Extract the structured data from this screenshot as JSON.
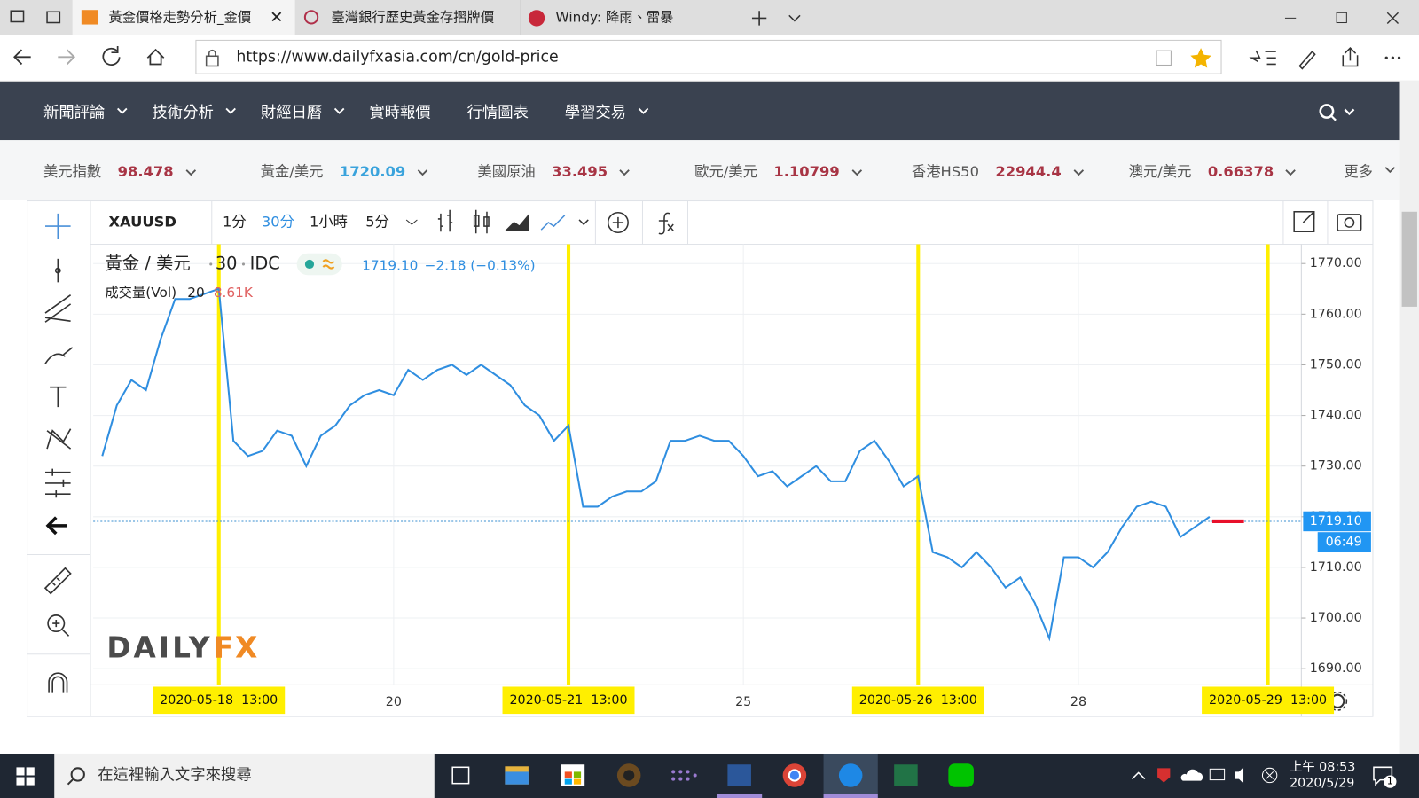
{
  "tabs": [
    "黃金價格走勢分析_金價",
    "臺灣銀行歷史黃金存摺牌價",
    "Windy: 降雨、雷暴"
  ],
  "url": "https://www.dailyfxasia.com/cn/gold-price",
  "nav": [
    "新聞評論",
    "技術分析",
    "財經日曆",
    "實時報價",
    "行情圖表",
    "學習交易"
  ],
  "nav_dropdown": [
    true,
    true,
    true,
    false,
    false,
    true
  ],
  "tickers": [
    {
      "name": "美元指數",
      "value": 98.478
    },
    {
      "name": "黃金/美元",
      "value": 1720.09
    },
    {
      "name": "美國原油",
      "value": 33.495
    },
    {
      "name": "歐元/美元",
      "value": 1.10799
    },
    {
      "name": "香港HS50",
      "value": 22944.4
    },
    {
      "name": "澳元/美元",
      "value": 0.66378
    }
  ],
  "tickers_more": "更多",
  "chart_toolbar": {
    "symbol": "XAUUSD",
    "intervals": [
      "1分",
      "30分",
      "1小時",
      "5分"
    ],
    "active_interval": 1
  },
  "legend": {
    "title": "黃金 / 美元",
    "interval": 30,
    "source": "IDC",
    "change": "−2.18 (−0.13%)",
    "volume_name": "成交量(Vol)",
    "volume_period": 20,
    "volume_value": "8.61K"
  },
  "watermark": [
    "DAILY",
    "FX"
  ],
  "countdown": "06:49",
  "chart_data": {
    "type": "line",
    "categories": [
      null,
      null,
      null,
      null,
      null,
      null,
      null,
      null,
      "2020-05-18  13:00",
      null,
      null,
      null,
      null,
      null,
      null,
      null,
      null,
      null,
      null,
      null,
      "20",
      null,
      null,
      null,
      null,
      null,
      null,
      null,
      null,
      null,
      null,
      null,
      "2020-05-21  13:00",
      null,
      null,
      null,
      null,
      null,
      null,
      null,
      null,
      null,
      null,
      null,
      "25",
      null,
      null,
      null,
      null,
      null,
      null,
      null,
      null,
      null,
      null,
      null,
      "2020-05-26  13:00",
      null,
      null,
      null,
      null,
      null,
      null,
      null,
      null,
      null,
      null,
      "28",
      null,
      null,
      null,
      null,
      null,
      null,
      null,
      null,
      null,
      null,
      null,
      null,
      "2020-05-29  13:00",
      null,
      null
    ],
    "series": [
      {
        "name": "黃金 / 美元",
        "color": "#2f8ee0",
        "values": [
          1732,
          1742,
          1747,
          1745,
          1755,
          1763,
          1763,
          1764,
          1765,
          1735,
          1732,
          1733,
          1737,
          1736,
          1730,
          1736,
          1738,
          1742,
          1744,
          1745,
          1744,
          1749,
          1747,
          1749,
          1750,
          1748,
          1750,
          1748,
          1746,
          1742,
          1740,
          1735,
          1738,
          1722,
          1722,
          1724,
          1725,
          1725,
          1727,
          1735,
          1735,
          1736,
          1735,
          1735,
          1732,
          1728,
          1729,
          1726,
          1728,
          1730,
          1727,
          1727,
          1733,
          1735,
          1731,
          1726,
          1728,
          1713,
          1712,
          1710,
          1713,
          1710,
          1706,
          1708,
          1703,
          1696,
          1712,
          1712,
          1710,
          1713,
          1718,
          1722,
          1723,
          1722,
          1716,
          1718,
          1720,
          null,
          null,
          null,
          null,
          null,
          null
        ]
      }
    ],
    "last_price": {
      "value": 1719.1,
      "label": "1719.10"
    },
    "ylim": [
      1686.8,
      1773.8
    ],
    "yticks": [
      {
        "value": 1690,
        "label": "1690.00"
      },
      {
        "value": 1700,
        "label": "1700.00"
      },
      {
        "value": 1710,
        "label": "1710.00"
      },
      {
        "value": 1720,
        "label": "1720.00"
      },
      {
        "value": 1730,
        "label": "1730.00"
      },
      {
        "value": 1740,
        "label": "1740.00"
      },
      {
        "value": 1750,
        "label": "1750.00"
      },
      {
        "value": 1760,
        "label": "1760.00"
      },
      {
        "value": 1770,
        "label": "1770.00"
      }
    ],
    "grid": true
  },
  "taskbar": {
    "search": "在這裡輸入文字來搜尋",
    "time": "上午 08:53",
    "date": "2020/5/29",
    "notifications": 1
  }
}
